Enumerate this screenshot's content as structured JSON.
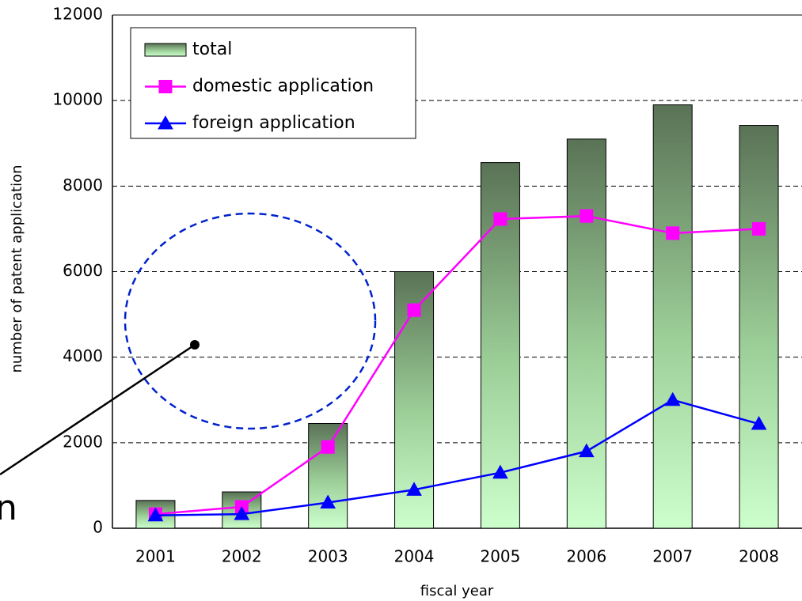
{
  "chart_data": {
    "type": "bar",
    "x_label": "fiscal year",
    "y_label": "number of patent application",
    "annotation": "n",
    "categories": [
      "2001",
      "2002",
      "2003",
      "2004",
      "2005",
      "2006",
      "2007",
      "2008"
    ],
    "series": [
      {
        "name": "total",
        "type": "bar",
        "color": "#5a7256",
        "values": [
          650,
          850,
          2450,
          6000,
          8550,
          9100,
          9900,
          9420
        ]
      },
      {
        "name": "domestic application",
        "type": "line",
        "marker": "square",
        "color": "#ff00ff",
        "values": [
          330,
          500,
          1900,
          5100,
          7230,
          7300,
          6900,
          7000
        ]
      },
      {
        "name": "foreign application",
        "type": "line",
        "marker": "triangle",
        "color": "#0000ff",
        "values": [
          300,
          330,
          600,
          900,
          1300,
          1800,
          3000,
          2440
        ]
      }
    ],
    "ylim": [
      0,
      12000
    ],
    "yticks": [
      0,
      2000,
      4000,
      6000,
      8000,
      10000,
      12000
    ],
    "grid": true,
    "legend": "upper left"
  }
}
